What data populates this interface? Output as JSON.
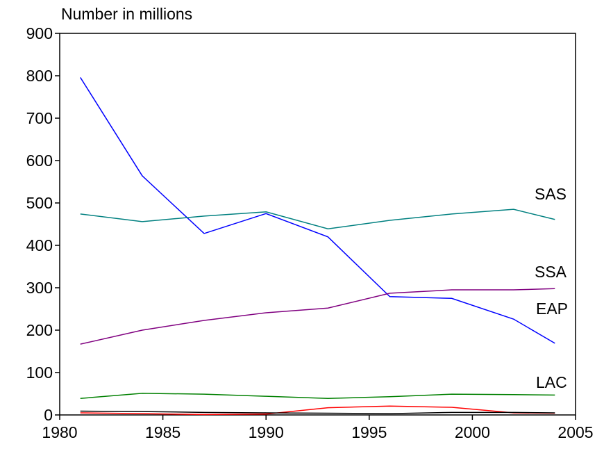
{
  "chart_data": {
    "type": "line",
    "y_label": "Number in millions",
    "x": [
      1981,
      1984,
      1987,
      1990,
      1993,
      1996,
      1999,
      2002,
      2004
    ],
    "xlim": [
      1980,
      2005
    ],
    "xticks": [
      1980,
      1985,
      1990,
      1995,
      2000,
      2005
    ],
    "ylim": [
      0,
      900
    ],
    "yticks": [
      0,
      100,
      200,
      300,
      400,
      500,
      600,
      700,
      800,
      900
    ],
    "series": [
      {
        "name": "EAP",
        "color": "#0000ff",
        "values": [
          796,
          564,
          428,
          475,
          420,
          279,
          275,
          226,
          169
        ]
      },
      {
        "name": "SAS",
        "color": "#008080",
        "values": [
          474,
          456,
          469,
          479,
          439,
          459,
          474,
          485,
          461
        ]
      },
      {
        "name": "SSA",
        "color": "#800080",
        "values": [
          167,
          200,
          223,
          241,
          252,
          287,
          295,
          295,
          298
        ]
      },
      {
        "name": "LAC",
        "color": "#008000",
        "values": [
          39,
          51,
          49,
          44,
          39,
          43,
          49,
          48,
          47
        ]
      },
      {
        "color": "#ff0000",
        "values": [
          5,
          3,
          1,
          2,
          17,
          21,
          18,
          5,
          4
        ]
      },
      {
        "color": "#000000",
        "values": [
          9,
          8,
          6,
          5,
          4,
          3,
          6,
          6,
          5
        ]
      }
    ]
  }
}
